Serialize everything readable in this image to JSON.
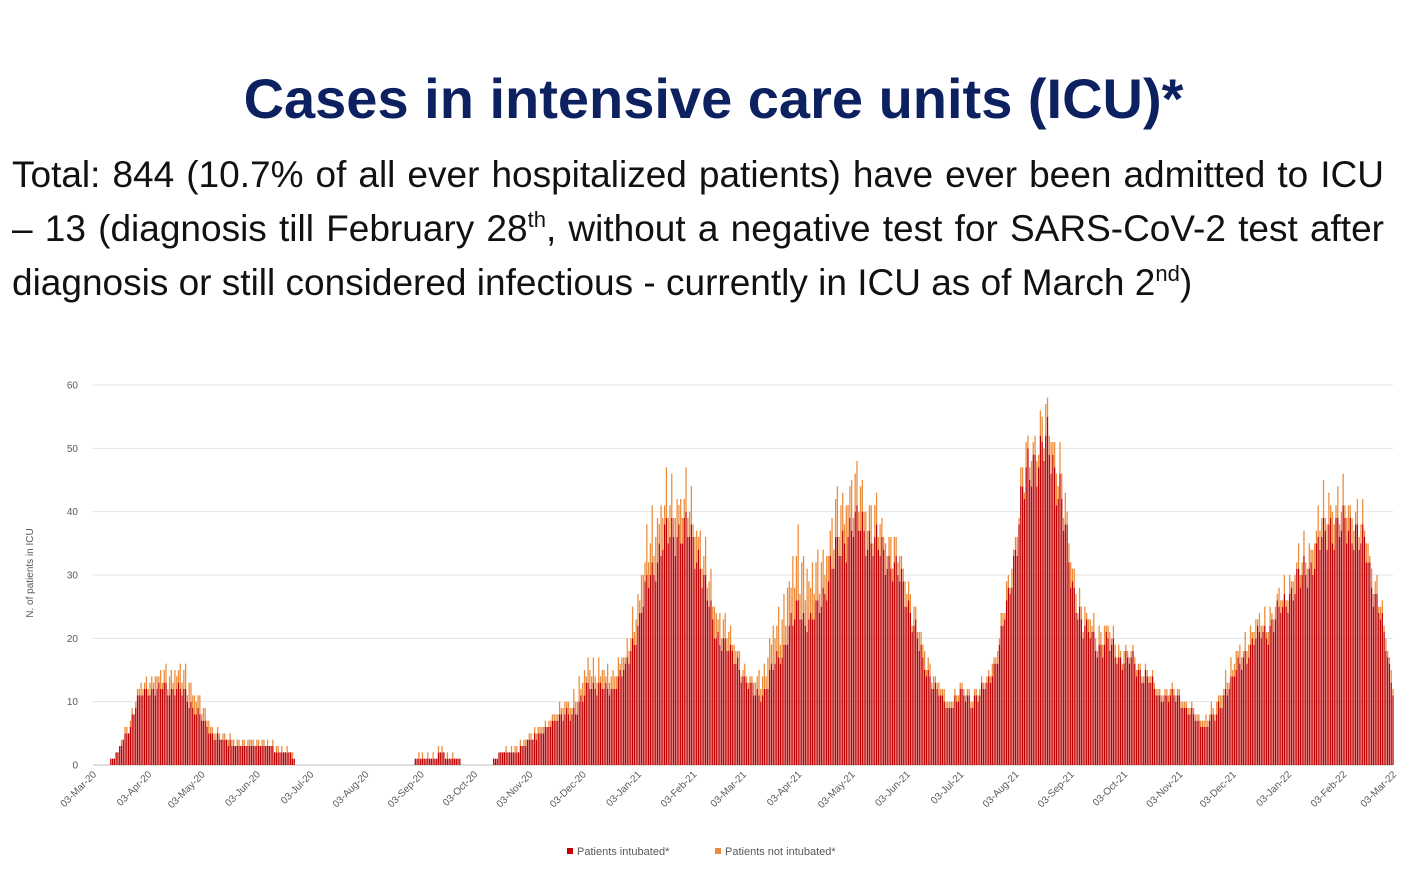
{
  "slide": {
    "title": "Cases in intensive care units (ICU)*",
    "summary": {
      "part1": "Total: 844 (10.7% of all ever hospitalized patients) have ever been admitted to ICU – 13 (diagnosis till February 28",
      "sup1": "th",
      "part2": ", without a negative test for SARS-CoV-2 test after diagnosis or still considered infectious - currently in ICU as of March 2",
      "sup2": "nd",
      "part3": ")"
    }
  },
  "colors": {
    "intubated": "#c00000",
    "not_intubated": "#ed8c3c",
    "title": "#0d2160",
    "grid": "#e3e3e3",
    "axis_text": "#595959"
  },
  "chart_data": {
    "type": "bar",
    "stacked": true,
    "title": "",
    "ylabel": "N. of patients in ICU",
    "xlabel": "",
    "ylim": [
      0,
      60
    ],
    "yticks": [
      0,
      10,
      20,
      30,
      40,
      50,
      60
    ],
    "grid": true,
    "legend_position": "bottom-center",
    "x_start": "03-Mar-20",
    "x_end": "03-Mar-22",
    "tick_labels": [
      "03-Mar-20",
      "03-Apr-20",
      "03-May-20",
      "03-Jun-20",
      "03-Jul-20",
      "03-Aug-20",
      "03-Sep-20",
      "03-Oct-20",
      "03-Nov-20",
      "03-Dec-20",
      "03-Jan-21",
      "03-Feb-21",
      "03-Mar-21",
      "03-Apr-21",
      "03-May-21",
      "03-Jun-21",
      "03-Jul-21",
      "03-Aug-21",
      "03-Sep-21",
      "03-Oct-21",
      "03-Nov-21",
      "03-Dec-21",
      "03-Jan-22",
      "03-Feb-22",
      "03-Mar-22"
    ],
    "series": [
      {
        "name": "Patients intubated*",
        "color": "#c00000",
        "points": [
          [
            "2020-03-10",
            0
          ],
          [
            "2020-03-15",
            1
          ],
          [
            "2020-03-22",
            5
          ],
          [
            "2020-03-28",
            10
          ],
          [
            "2020-04-03",
            12
          ],
          [
            "2020-04-10",
            12
          ],
          [
            "2020-04-17",
            12
          ],
          [
            "2020-04-24",
            11
          ],
          [
            "2020-05-01",
            8
          ],
          [
            "2020-05-08",
            5
          ],
          [
            "2020-05-15",
            4
          ],
          [
            "2020-05-22",
            3
          ],
          [
            "2020-06-01",
            3
          ],
          [
            "2020-06-10",
            3
          ],
          [
            "2020-06-17",
            2
          ],
          [
            "2020-06-22",
            2
          ],
          [
            "2020-06-25",
            0
          ],
          [
            "2020-08-29",
            0
          ],
          [
            "2020-09-01",
            1
          ],
          [
            "2020-09-10",
            1
          ],
          [
            "2020-09-15",
            2
          ],
          [
            "2020-09-20",
            1
          ],
          [
            "2020-09-30",
            0
          ],
          [
            "2020-10-12",
            0
          ],
          [
            "2020-10-14",
            1
          ],
          [
            "2020-10-18",
            2
          ],
          [
            "2020-10-28",
            2
          ],
          [
            "2020-11-03",
            4
          ],
          [
            "2020-11-10",
            5
          ],
          [
            "2020-11-17",
            7
          ],
          [
            "2020-11-24",
            8
          ],
          [
            "2020-12-01",
            9
          ],
          [
            "2020-12-06",
            13
          ],
          [
            "2020-12-12",
            12
          ],
          [
            "2020-12-20",
            12
          ],
          [
            "2020-12-27",
            15
          ],
          [
            "2021-01-03",
            22
          ],
          [
            "2021-01-10",
            30
          ],
          [
            "2021-01-17",
            35
          ],
          [
            "2021-01-24",
            37
          ],
          [
            "2021-01-31",
            37
          ],
          [
            "2021-02-07",
            32
          ],
          [
            "2021-02-14",
            22
          ],
          [
            "2021-02-21",
            19
          ],
          [
            "2021-02-28",
            16
          ],
          [
            "2021-03-07",
            12
          ],
          [
            "2021-03-14",
            11
          ],
          [
            "2021-03-21",
            16
          ],
          [
            "2021-03-28",
            20
          ],
          [
            "2021-04-03",
            25
          ],
          [
            "2021-04-10",
            22
          ],
          [
            "2021-04-17",
            27
          ],
          [
            "2021-04-24",
            33
          ],
          [
            "2021-05-01",
            37
          ],
          [
            "2021-05-08",
            38
          ],
          [
            "2021-05-15",
            35
          ],
          [
            "2021-05-22",
            33
          ],
          [
            "2021-05-29",
            30
          ],
          [
            "2021-06-05",
            25
          ],
          [
            "2021-06-12",
            16
          ],
          [
            "2021-06-19",
            12
          ],
          [
            "2021-06-26",
            9
          ],
          [
            "2021-07-03",
            11
          ],
          [
            "2021-07-10",
            10
          ],
          [
            "2021-07-17",
            12
          ],
          [
            "2021-07-24",
            17
          ],
          [
            "2021-07-31",
            28
          ],
          [
            "2021-08-07",
            43
          ],
          [
            "2021-08-14",
            49
          ],
          [
            "2021-08-21",
            50
          ],
          [
            "2021-08-28",
            44
          ],
          [
            "2021-09-03",
            29
          ],
          [
            "2021-09-10",
            22
          ],
          [
            "2021-09-17",
            19
          ],
          [
            "2021-09-24",
            19
          ],
          [
            "2021-10-01",
            17
          ],
          [
            "2021-10-08",
            16
          ],
          [
            "2021-10-15",
            14
          ],
          [
            "2021-10-22",
            11
          ],
          [
            "2021-10-29",
            11
          ],
          [
            "2021-11-03",
            10
          ],
          [
            "2021-11-10",
            8
          ],
          [
            "2021-11-17",
            6
          ],
          [
            "2021-11-24",
            8
          ],
          [
            "2021-12-01",
            13
          ],
          [
            "2021-12-08",
            16
          ],
          [
            "2021-12-15",
            20
          ],
          [
            "2021-12-22",
            21
          ],
          [
            "2021-12-29",
            24
          ],
          [
            "2022-01-05",
            27
          ],
          [
            "2022-01-12",
            30
          ],
          [
            "2022-01-19",
            33
          ],
          [
            "2022-01-26",
            38
          ],
          [
            "2022-02-02",
            37
          ],
          [
            "2022-02-09",
            38
          ],
          [
            "2022-02-16",
            33
          ],
          [
            "2022-02-23",
            25
          ],
          [
            "2022-03-01",
            15
          ],
          [
            "2022-03-03",
            12
          ]
        ]
      },
      {
        "name": "Patients not intubated*",
        "color": "#ed8c3c",
        "points": [
          [
            "2020-03-15",
            0.3
          ],
          [
            "2020-03-28",
            1
          ],
          [
            "2020-04-10",
            2
          ],
          [
            "2020-04-24",
            3
          ],
          [
            "2020-05-08",
            1
          ],
          [
            "2020-06-10",
            0.5
          ],
          [
            "2020-09-10",
            0.4
          ],
          [
            "2020-10-18",
            0.3
          ],
          [
            "2020-11-17",
            1
          ],
          [
            "2020-12-06",
            3
          ],
          [
            "2020-12-27",
            2
          ],
          [
            "2021-01-10",
            6
          ],
          [
            "2021-01-24",
            5
          ],
          [
            "2021-02-07",
            4
          ],
          [
            "2021-02-21",
            3
          ],
          [
            "2021-03-07",
            1
          ],
          [
            "2021-03-21",
            5
          ],
          [
            "2021-04-03",
            8
          ],
          [
            "2021-04-17",
            5
          ],
          [
            "2021-05-01",
            6
          ],
          [
            "2021-05-15",
            4
          ],
          [
            "2021-05-29",
            3
          ],
          [
            "2021-06-12",
            2
          ],
          [
            "2021-06-26",
            1
          ],
          [
            "2021-07-17",
            1
          ],
          [
            "2021-07-31",
            2
          ],
          [
            "2021-08-14",
            3
          ],
          [
            "2021-08-28",
            4
          ],
          [
            "2021-09-10",
            2
          ],
          [
            "2021-09-24",
            2
          ],
          [
            "2021-10-08",
            1
          ],
          [
            "2021-10-29",
            1
          ],
          [
            "2021-11-17",
            1
          ],
          [
            "2021-12-01",
            2
          ],
          [
            "2021-12-15",
            2
          ],
          [
            "2021-12-29",
            2
          ],
          [
            "2022-01-12",
            3
          ],
          [
            "2022-01-26",
            4
          ],
          [
            "2022-02-09",
            3
          ],
          [
            "2022-02-23",
            2
          ],
          [
            "2022-03-03",
            1
          ]
        ]
      }
    ]
  }
}
